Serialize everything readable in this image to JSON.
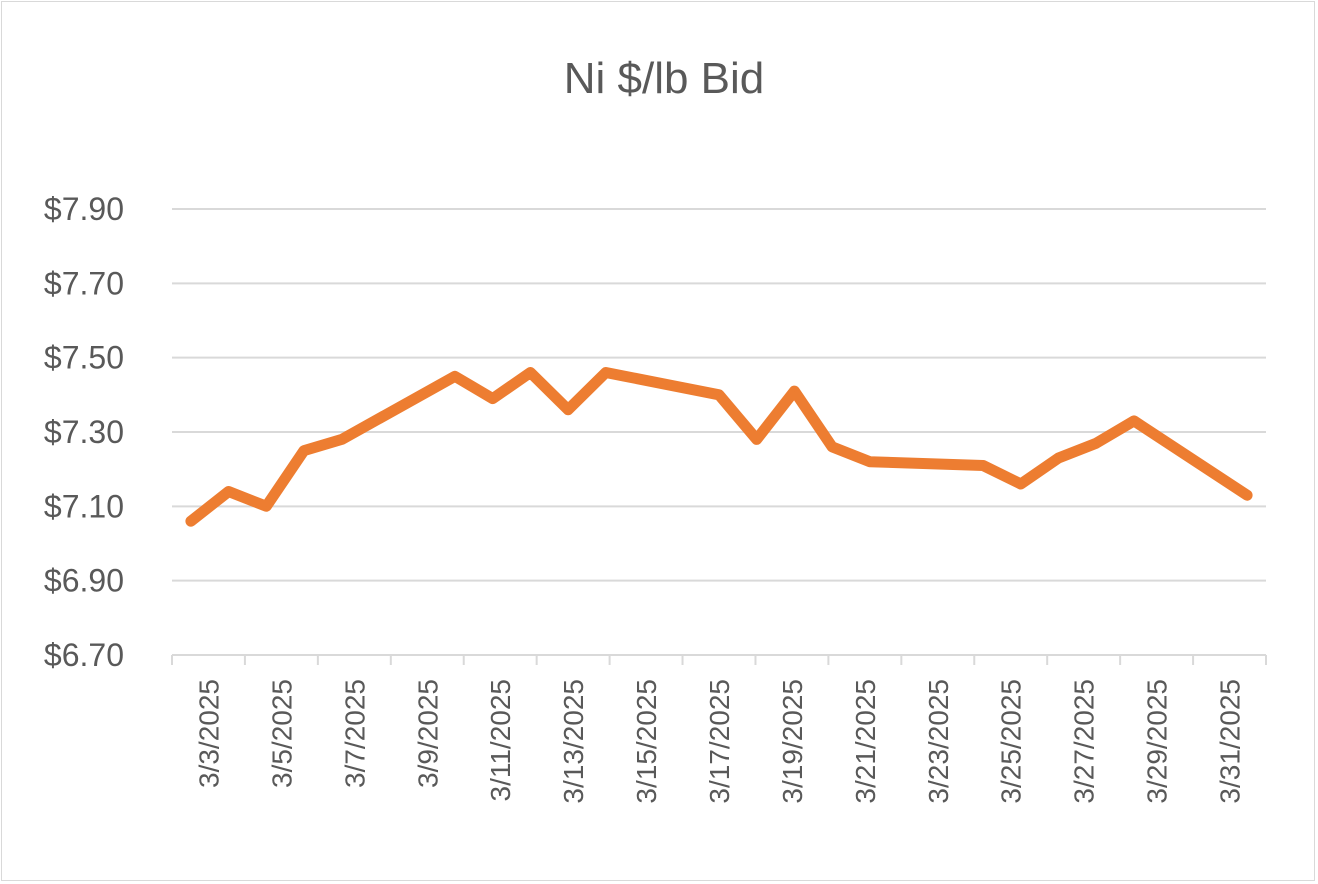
{
  "chart_data": {
    "type": "line",
    "title": "Ni $/lb Bid",
    "xlabel": "",
    "ylabel": "",
    "ylim": [
      6.7,
      7.9
    ],
    "y_ticks": [
      "$6.70",
      "$6.90",
      "$7.10",
      "$7.30",
      "$7.50",
      "$7.70",
      "$7.90"
    ],
    "x_ticks": [
      "3/3/2025",
      "3/5/2025",
      "3/7/2025",
      "3/9/2025",
      "3/11/2025",
      "3/13/2025",
      "3/15/2025",
      "3/17/2025",
      "3/19/2025",
      "3/21/2025",
      "3/23/2025",
      "3/25/2025",
      "3/27/2025",
      "3/29/2025",
      "3/31/2025"
    ],
    "x_range": [
      "3/3/2025",
      "3/31/2025"
    ],
    "grid": true,
    "legend": "none",
    "line_color": "#ED7D31",
    "grid_color": "#D9D9D9",
    "x": [
      "3/3/2025",
      "3/4/2025",
      "3/5/2025",
      "3/6/2025",
      "3/7/2025",
      "3/10/2025",
      "3/11/2025",
      "3/12/2025",
      "3/13/2025",
      "3/14/2025",
      "3/17/2025",
      "3/18/2025",
      "3/19/2025",
      "3/20/2025",
      "3/21/2025",
      "3/24/2025",
      "3/25/2025",
      "3/26/2025",
      "3/27/2025",
      "3/28/2025",
      "3/31/2025"
    ],
    "values": [
      7.06,
      7.14,
      7.1,
      7.25,
      7.28,
      7.45,
      7.39,
      7.46,
      7.36,
      7.46,
      7.4,
      7.28,
      7.41,
      7.26,
      7.22,
      7.21,
      7.16,
      7.23,
      7.27,
      7.33,
      7.13
    ]
  }
}
